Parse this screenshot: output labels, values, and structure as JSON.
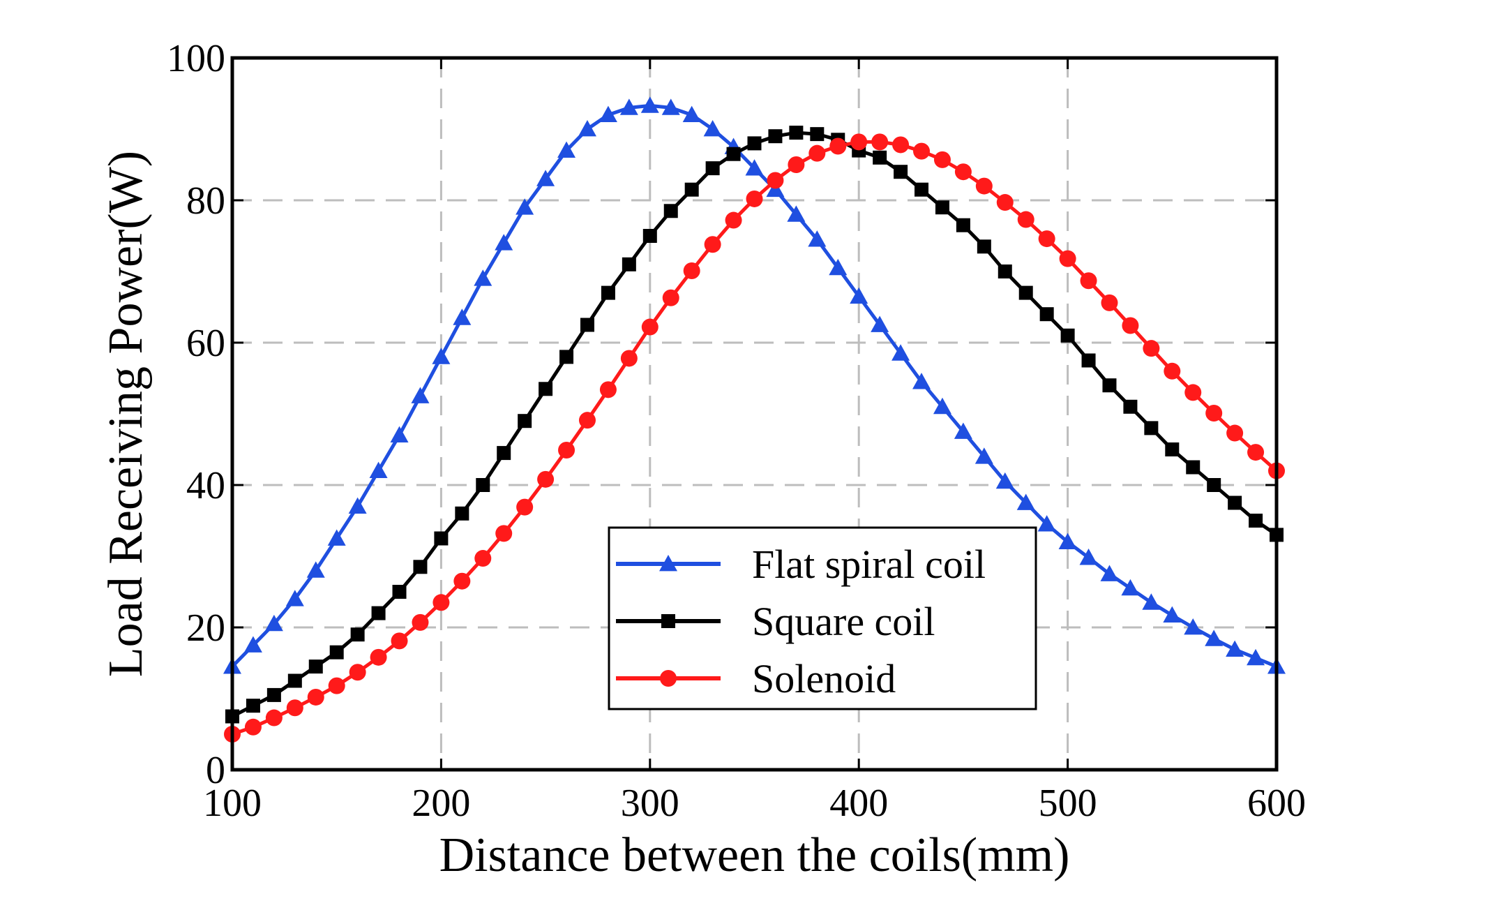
{
  "chart_data": {
    "type": "line",
    "xlabel": "Distance between the coils(mm)",
    "ylabel": "Load Receiving Power(W)",
    "xlim": [
      100,
      600
    ],
    "ylim": [
      0,
      100
    ],
    "xticks": [
      "100",
      "200",
      "300",
      "400",
      "500",
      "600"
    ],
    "yticks": [
      "0",
      "20",
      "40",
      "60",
      "80",
      "100"
    ],
    "grid": true,
    "legend_position": "bottom-center",
    "x": [
      100,
      110,
      120,
      130,
      140,
      150,
      160,
      170,
      180,
      190,
      200,
      210,
      220,
      230,
      240,
      250,
      260,
      270,
      280,
      290,
      300,
      310,
      320,
      330,
      340,
      350,
      360,
      370,
      380,
      390,
      400,
      410,
      420,
      430,
      440,
      450,
      460,
      470,
      480,
      490,
      500,
      510,
      520,
      530,
      540,
      550,
      560,
      570,
      580,
      590,
      600
    ],
    "series": [
      {
        "name": "Flat spiral coil",
        "color": "#1f4fe0",
        "marker": "triangle",
        "values": [
          14.5,
          17.5,
          20.5,
          24,
          28,
          32.5,
          37,
          42,
          47,
          52.5,
          58,
          63.5,
          69,
          74,
          79,
          83,
          87,
          90,
          92,
          93,
          93.3,
          93,
          92,
          90,
          87.5,
          84.5,
          81.5,
          78,
          74.5,
          70.5,
          66.5,
          62.5,
          58.5,
          54.5,
          51,
          47.5,
          44,
          40.5,
          37.5,
          34.5,
          32,
          29.8,
          27.5,
          25.5,
          23.5,
          21.7,
          20,
          18.4,
          16.9,
          15.7,
          14.5
        ]
      },
      {
        "name": "Square coil",
        "color": "#000000",
        "marker": "square",
        "values": [
          7.5,
          9,
          10.5,
          12.5,
          14.5,
          16.5,
          19,
          22,
          25,
          28.5,
          32.5,
          36,
          40,
          44.5,
          49,
          53.5,
          58,
          62.5,
          67,
          71,
          75,
          78.5,
          81.5,
          84.5,
          86.5,
          88,
          89,
          89.5,
          89.3,
          88.5,
          87,
          86,
          84,
          81.5,
          79,
          76.5,
          73.5,
          70,
          67,
          64,
          61,
          57.5,
          54,
          51,
          48,
          45,
          42.5,
          40,
          37.5,
          35,
          33
        ]
      },
      {
        "name": "Solenoid",
        "color": "#ff1a1a",
        "marker": "circle",
        "values": [
          5,
          6,
          7.3,
          8.7,
          10.2,
          11.8,
          13.7,
          15.8,
          18.1,
          20.7,
          23.5,
          26.5,
          29.7,
          33.2,
          36.9,
          40.8,
          44.9,
          49.1,
          53.4,
          57.8,
          62.2,
          66.3,
          70.1,
          73.8,
          77.2,
          80.2,
          82.8,
          85,
          86.6,
          87.6,
          88.2,
          88.2,
          87.8,
          86.9,
          85.7,
          84,
          82,
          79.7,
          77.3,
          74.6,
          71.8,
          68.7,
          65.6,
          62.4,
          59.2,
          56,
          53,
          50.1,
          47.3,
          44.6,
          42
        ]
      }
    ]
  }
}
